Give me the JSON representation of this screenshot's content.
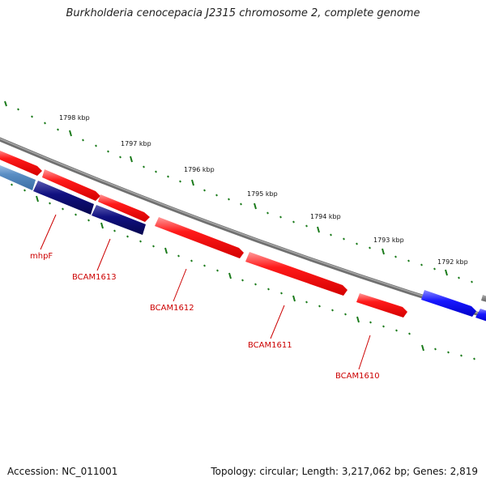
{
  "title": "Burkholderia cenocepacia J2315 chromosome 2, complete genome",
  "footer": {
    "accession": "Accession: NC_011001",
    "summary": "Topology: circular; Length: 3,217,062 bp; Genes: 2,819"
  },
  "colors": {
    "forward_gene": "#ff0000",
    "reverse_gene_dark": "#0a0a7a",
    "reverse_gene_light": "#3333ff",
    "backbone": "#888888",
    "tick": "#1a7a1a",
    "gene_label": "#cc0000"
  },
  "scale_labels": [
    "1798 kbp",
    "1797 kbp",
    "1796 kbp",
    "1795 kbp",
    "1794 kbp",
    "1793 kbp",
    "1792 kbp"
  ],
  "gene_labels": [
    "mhpF",
    "BCAM1613",
    "BCAM1612",
    "BCAM1611",
    "BCAM1610"
  ]
}
